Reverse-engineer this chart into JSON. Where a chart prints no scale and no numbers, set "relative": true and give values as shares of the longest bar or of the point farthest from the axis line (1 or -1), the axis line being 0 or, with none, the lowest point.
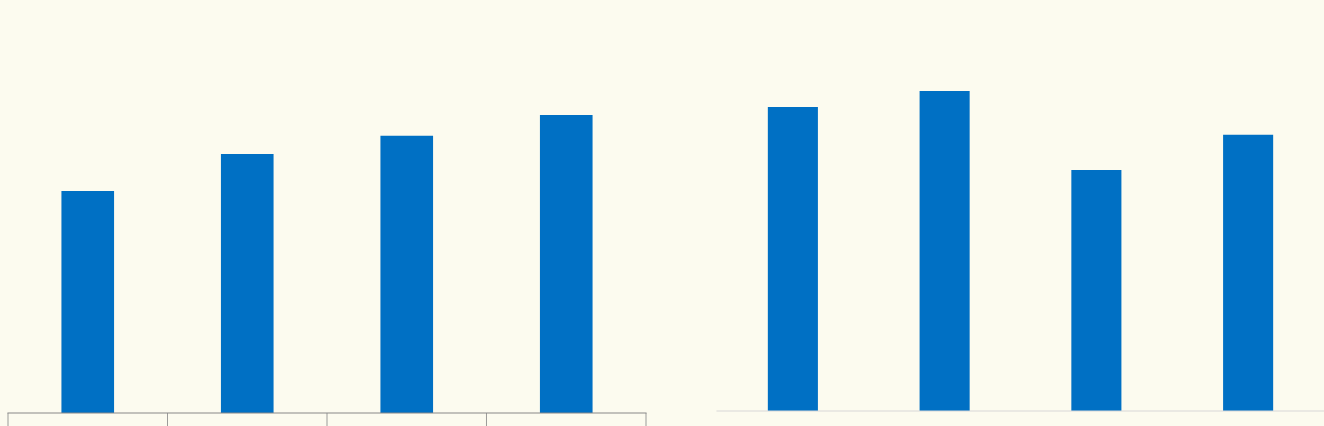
{
  "chart_data": [
    {
      "type": "bar",
      "relative": true,
      "categories": [
        null,
        null,
        null,
        null
      ],
      "color": "#0070c4",
      "values": [
        0.745,
        0.869,
        0.93,
        1
      ]
    },
    {
      "type": "bar",
      "relative": true,
      "categories": [
        null,
        null,
        null,
        null
      ],
      "color": "#0070c4",
      "values": [
        0.95,
        1,
        0.753,
        0.863
      ]
    }
  ]
}
